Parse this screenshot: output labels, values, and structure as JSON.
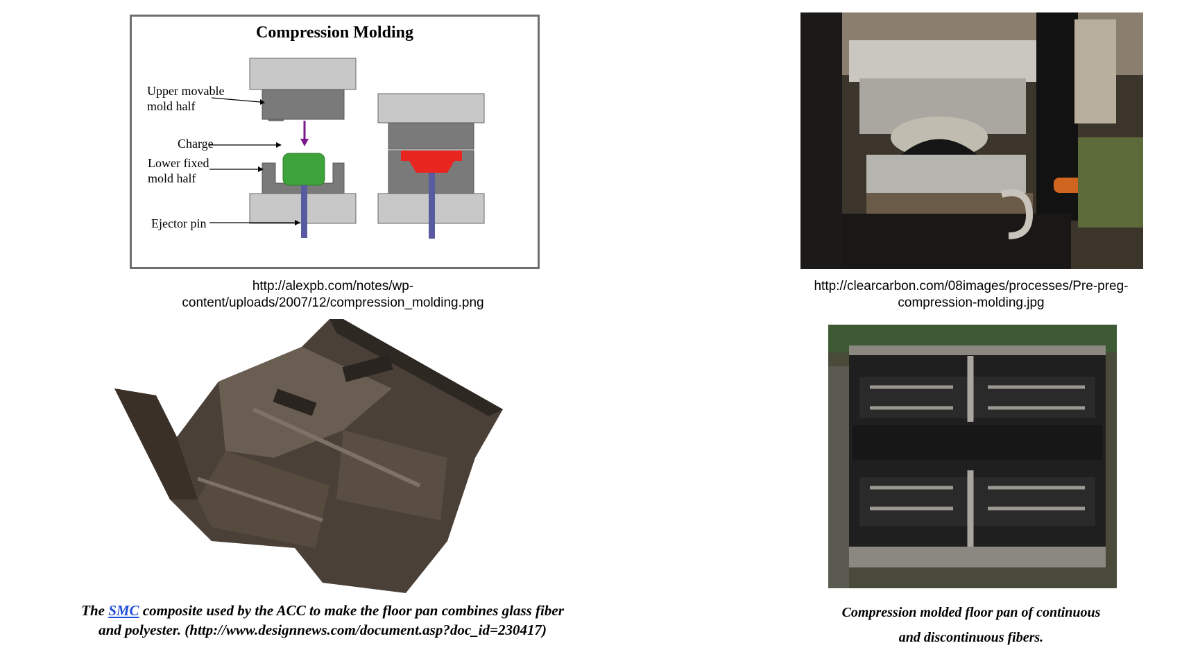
{
  "diagram": {
    "title": "Compression Molding",
    "labels": {
      "upper": "Upper movable\nmold half",
      "charge": "Charge",
      "lower": "Lower fixed\nmold half",
      "ejector": "Ejector pin"
    }
  },
  "captions": {
    "top_left_line1": "http://alexpb.com/notes/wp-",
    "top_left_line2": "content/uploads/2007/12/compression_molding.png",
    "top_right_line1": "http://clearcarbon.com/08images/processes/Pre-preg-",
    "top_right_line2": "compression-molding.jpg",
    "bottom_left_pre": "The ",
    "bottom_left_link": "SMC",
    "bottom_left_post": " composite used by the ACC to make the floor pan combines glass fiber",
    "bottom_left_line2": "and polyester. (http://www.designnews.com/document.asp?doc_id=230417)",
    "bottom_right_line1": "Compression molded floor pan of continuous",
    "bottom_right_line2": "and discontinuous fibers."
  },
  "colors": {
    "mold_light": "#c8c8c8",
    "mold_dark": "#7a7a7a",
    "charge_green": "#3ea33a",
    "part_red": "#e8251f",
    "pin_blue": "#5a5aa0",
    "arrow_purple": "#7a1a8a"
  }
}
